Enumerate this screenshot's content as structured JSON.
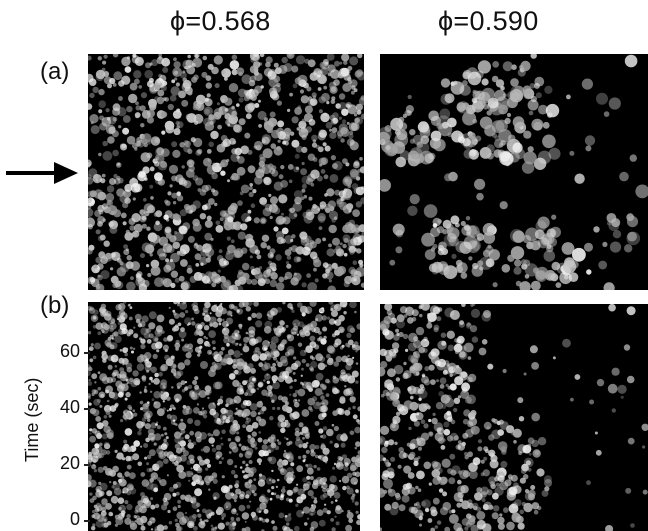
{
  "figure": {
    "columns": [
      {
        "title": "ϕ=0.568"
      },
      {
        "title": "ϕ=0.590"
      }
    ],
    "panel_labels": {
      "a": "(a)",
      "b": "(b)"
    },
    "time_axis": {
      "title": "Time (sec)",
      "ticks": [
        "0",
        "20",
        "40",
        "60"
      ]
    },
    "arrow_icon": "right-arrow-icon"
  }
}
